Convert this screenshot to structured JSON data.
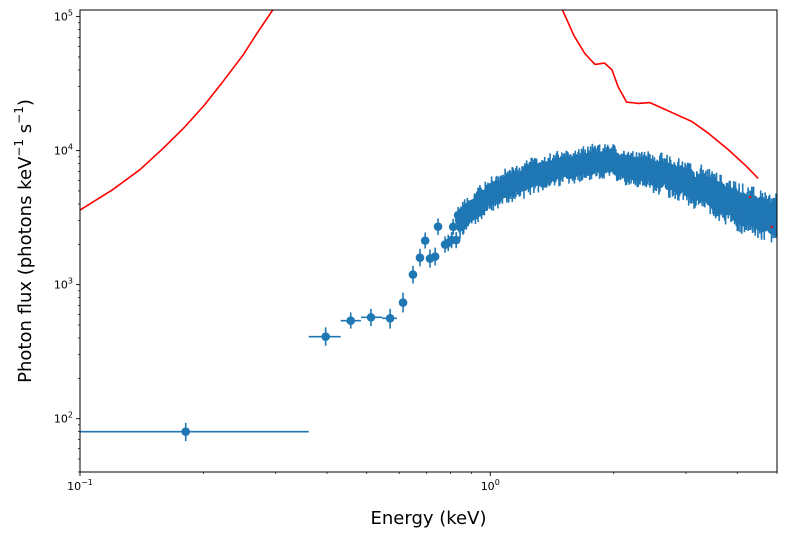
{
  "chart_data": {
    "type": "scatter",
    "title": "",
    "xlabel": "Energy (keV)",
    "ylabel": "Photon flux (photons keV",
    "ylabel_sup1": "−1",
    "ylabel_mid": " s",
    "ylabel_sup2": "−1",
    "ylabel_end": ")",
    "xscale": "log",
    "yscale": "log",
    "xlim": [
      0.1,
      5.0
    ],
    "ylim": [
      40,
      112000
    ],
    "grid": false,
    "x_ticks": [
      {
        "value": 0.1,
        "base": "10",
        "exp": "−1"
      },
      {
        "value": 1.0,
        "base": "10",
        "exp": "0"
      }
    ],
    "y_ticks": [
      {
        "value": 100,
        "base": "10",
        "exp": "2"
      },
      {
        "value": 1000,
        "base": "10",
        "exp": "3"
      },
      {
        "value": 10000,
        "base": "10",
        "exp": "4"
      },
      {
        "value": 100000,
        "base": "10",
        "exp": "5"
      }
    ],
    "colors": {
      "data": "#1f77b4",
      "model": "#ff0000"
    },
    "series": [
      {
        "name": "data",
        "kind": "errorbar",
        "points": [
          {
            "x": 0.181,
            "y": 80,
            "xlo": 0.1,
            "xhi": 0.361,
            "ylo": 68,
            "yhi": 93
          },
          {
            "x": 0.397,
            "y": 409,
            "xlo": 0.361,
            "xhi": 0.432,
            "ylo": 350,
            "yhi": 480
          },
          {
            "x": 0.457,
            "y": 538,
            "xlo": 0.432,
            "xhi": 0.484,
            "ylo": 470,
            "yhi": 620
          },
          {
            "x": 0.512,
            "y": 570,
            "xlo": 0.484,
            "xhi": 0.545,
            "ylo": 490,
            "yhi": 660
          },
          {
            "x": 0.57,
            "y": 561,
            "xlo": 0.545,
            "xhi": 0.592,
            "ylo": 470,
            "yhi": 660
          },
          {
            "x": 0.613,
            "y": 735,
            "xlo": 0.6,
            "xhi": 0.626,
            "ylo": 620,
            "yhi": 870
          },
          {
            "x": 0.648,
            "y": 1189,
            "xlo": 0.638,
            "xhi": 0.658,
            "ylo": 1020,
            "yhi": 1380
          },
          {
            "x": 0.674,
            "y": 1590,
            "xlo": 0.665,
            "xhi": 0.683,
            "ylo": 1370,
            "yhi": 1850
          },
          {
            "x": 0.694,
            "y": 2130,
            "xlo": 0.686,
            "xhi": 0.702,
            "ylo": 1860,
            "yhi": 2450
          },
          {
            "x": 0.713,
            "y": 1565,
            "xlo": 0.705,
            "xhi": 0.721,
            "ylo": 1340,
            "yhi": 1830
          },
          {
            "x": 0.734,
            "y": 1620,
            "xlo": 0.726,
            "xhi": 0.742,
            "ylo": 1390,
            "yhi": 1890
          },
          {
            "x": 0.746,
            "y": 2710,
            "xlo": 0.739,
            "xhi": 0.753,
            "ylo": 2350,
            "yhi": 3120
          },
          {
            "x": 0.776,
            "y": 1990,
            "xlo": 0.769,
            "xhi": 0.783,
            "ylo": 1730,
            "yhi": 2290
          },
          {
            "x": 0.79,
            "y": 2050,
            "xlo": 0.783,
            "xhi": 0.797,
            "ylo": 1780,
            "yhi": 2360
          },
          {
            "x": 0.805,
            "y": 2150,
            "xlo": 0.798,
            "xhi": 0.812,
            "ylo": 1870,
            "yhi": 2470
          },
          {
            "x": 0.812,
            "y": 2700,
            "xlo": 0.805,
            "xhi": 0.819,
            "ylo": 2350,
            "yhi": 3100
          },
          {
            "x": 0.826,
            "y": 2150,
            "xlo": 0.819,
            "xhi": 0.833,
            "ylo": 1870,
            "yhi": 2470
          },
          {
            "x": 0.835,
            "y": 3300,
            "xlo": 0.828,
            "xhi": 0.842,
            "ylo": 2870,
            "yhi": 3800
          }
        ],
        "band": {
          "description": "dense error-bar points from ~0.84 to 5 keV",
          "x_range": [
            0.84,
            5.0
          ],
          "centerline": [
            [
              0.84,
              2900
            ],
            [
              0.95,
              4200
            ],
            [
              1.05,
              5100
            ],
            [
              1.3,
              6700
            ],
            [
              1.6,
              7700
            ],
            [
              1.95,
              8300
            ],
            [
              2.4,
              7100
            ],
            [
              3.0,
              5900
            ],
            [
              3.5,
              4700
            ],
            [
              4.2,
              3600
            ],
            [
              5.0,
              3000
            ]
          ]
        }
      },
      {
        "name": "model",
        "kind": "line",
        "points": [
          [
            0.1,
            3600
          ],
          [
            0.12,
            5100
          ],
          [
            0.14,
            7200
          ],
          [
            0.16,
            10500
          ],
          [
            0.18,
            15000
          ],
          [
            0.2,
            21500
          ],
          [
            0.22,
            31000
          ],
          [
            0.25,
            52000
          ],
          [
            0.27,
            75000
          ],
          [
            0.295,
            112000
          ],
          [
            1.5,
            112000
          ],
          [
            1.6,
            72000
          ],
          [
            1.7,
            53000
          ],
          [
            1.8,
            44000
          ],
          [
            1.9,
            45000
          ],
          [
            1.98,
            40000
          ],
          [
            2.05,
            30000
          ],
          [
            2.15,
            23000
          ],
          [
            2.3,
            22500
          ],
          [
            2.45,
            22800
          ],
          [
            2.6,
            21000
          ],
          [
            2.8,
            19000
          ],
          [
            3.1,
            16500
          ],
          [
            3.4,
            13500
          ],
          [
            3.8,
            10200
          ],
          [
            4.2,
            7700
          ],
          [
            4.5,
            6200
          ]
        ]
      }
    ]
  }
}
